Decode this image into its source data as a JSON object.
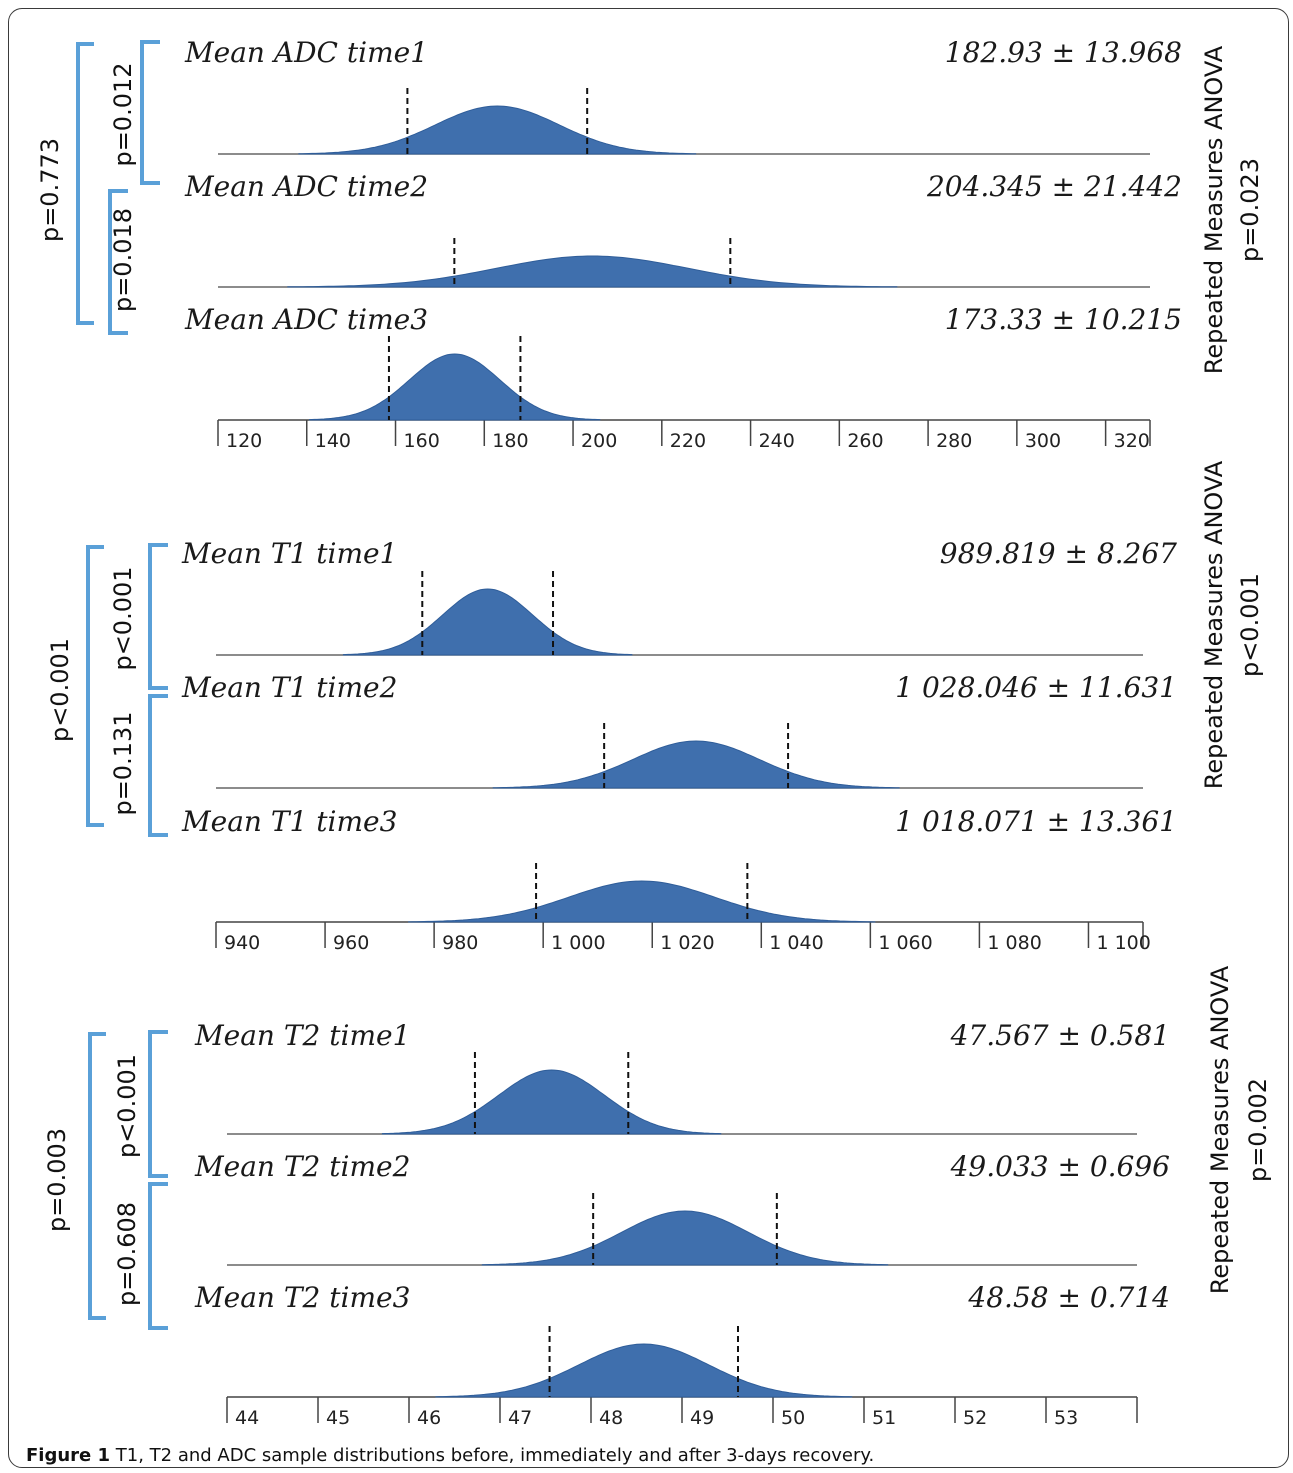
{
  "caption": {
    "label": "Figure 1",
    "text": " T1, T2 and ADC sample distributions before, immediately and after 3-days recovery."
  },
  "colors": {
    "curve_fill": "#3f6fad",
    "curve_edge": "#2f5d99",
    "bracket": "#5aa0d8",
    "axis": "#444444"
  },
  "chart_data": [
    {
      "type": "area",
      "title": "",
      "xlim": [
        120,
        330
      ],
      "ticks": [
        "120",
        "140",
        "160",
        "180",
        "200",
        "220",
        "240",
        "260",
        "280",
        "300",
        "320"
      ],
      "tick_values": [
        120,
        140,
        160,
        180,
        200,
        220,
        240,
        260,
        280,
        300,
        320
      ],
      "series": [
        {
          "name": "Mean ADC time1",
          "stat": "182.93 ± 13.968",
          "mean": 182.93,
          "sd": 13.968
        },
        {
          "name": "Mean ADC time2",
          "stat": "204.345 ± 21.442",
          "mean": 204.345,
          "sd": 21.442
        },
        {
          "name": "Mean ADC time3",
          "stat": "173.33 ± 10.215",
          "mean": 173.33,
          "sd": 10.215
        }
      ],
      "comparisons": {
        "overall": "p=0.773",
        "t1_t2": "p=0.012",
        "t2_t3": "p=0.018"
      },
      "anova": {
        "label": "Repeated Measures ANOVA",
        "p": "p=0.023"
      }
    },
    {
      "type": "area",
      "title": "",
      "xlim": [
        940,
        1110
      ],
      "ticks": [
        "940",
        "960",
        "980",
        "1 000",
        "1 020",
        "1 040",
        "1 060",
        "1 080",
        "1 100"
      ],
      "tick_values": [
        940,
        960,
        980,
        1000,
        1020,
        1040,
        1060,
        1080,
        1100
      ],
      "series": [
        {
          "name": "Mean T1 time1",
          "stat": "989.819 ± 8.267",
          "mean": 989.819,
          "sd": 8.267
        },
        {
          "name": "Mean T1 time2",
          "stat": "1 028.046 ± 11.631",
          "mean": 1028.046,
          "sd": 11.631
        },
        {
          "name": "Mean T1 time3",
          "stat": "1 018.071 ± 13.361",
          "mean": 1018.071,
          "sd": 13.361
        }
      ],
      "comparisons": {
        "overall": "p<0.001",
        "t1_t2": "p<0.001",
        "t2_t3": "p=0.131"
      },
      "anova": {
        "label": "Repeated Measures ANOVA",
        "p": "p<0.001"
      }
    },
    {
      "type": "area",
      "title": "",
      "xlim": [
        44,
        54
      ],
      "ticks": [
        "44",
        "45",
        "46",
        "47",
        "48",
        "49",
        "50",
        "51",
        "52",
        "53"
      ],
      "tick_values": [
        44,
        45,
        46,
        47,
        48,
        49,
        50,
        51,
        52,
        53
      ],
      "series": [
        {
          "name": "Mean T2 time1",
          "stat": "47.567 ± 0.581",
          "mean": 47.567,
          "sd": 0.581
        },
        {
          "name": "Mean T2 time2",
          "stat": "49.033 ± 0.696",
          "mean": 49.033,
          "sd": 0.696
        },
        {
          "name": "Mean T2 time3",
          "stat": "48.58 ± 0.714",
          "mean": 48.58,
          "sd": 0.714
        }
      ],
      "comparisons": {
        "overall": "p=0.003",
        "t1_t2": "p<0.001",
        "t2_t3": "p=0.608"
      },
      "anova": {
        "label": "Repeated Measures ANOVA",
        "p": "p=0.002"
      }
    }
  ]
}
